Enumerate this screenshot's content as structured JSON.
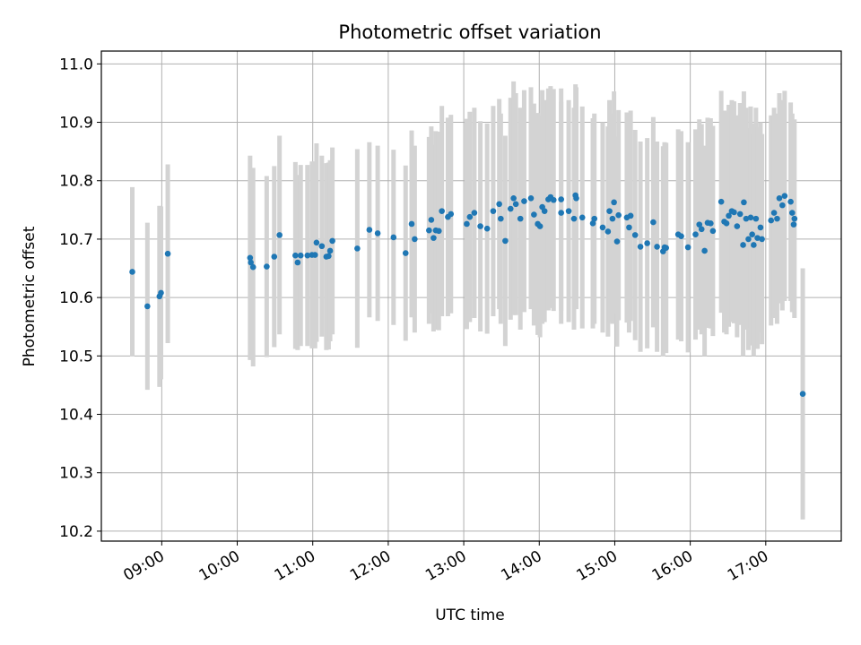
{
  "chart_data": {
    "type": "scatter",
    "title": "Photometric offset variation",
    "xlabel": "UTC time",
    "ylabel": "Photometric offset",
    "x_unit": "hours UTC",
    "xlim": [
      8.2,
      18.0
    ],
    "ylim": [
      10.183,
      11.022
    ],
    "x_ticks": [
      9,
      10,
      11,
      12,
      13,
      14,
      15,
      16,
      17
    ],
    "x_tick_labels": [
      "09:00",
      "10:00",
      "11:00",
      "12:00",
      "13:00",
      "14:00",
      "15:00",
      "16:00",
      "17:00"
    ],
    "y_ticks": [
      10.2,
      10.3,
      10.4,
      10.5,
      10.6,
      10.7,
      10.8,
      10.9,
      11.0
    ],
    "y_tick_labels": [
      "10.2",
      "10.3",
      "10.4",
      "10.5",
      "10.6",
      "10.7",
      "10.8",
      "10.9",
      "11.0"
    ],
    "grid": true,
    "colors": {
      "marker": "#1f77b4",
      "errorbar": "#d3d3d3",
      "grid": "#b0b0b0"
    },
    "points": [
      [
        8.61,
        10.644,
        0.145
      ],
      [
        8.81,
        10.585,
        0.143
      ],
      [
        8.97,
        10.602,
        0.155
      ],
      [
        8.99,
        10.608,
        0.148
      ],
      [
        9.08,
        10.675,
        0.153
      ],
      [
        10.17,
        10.668,
        0.175
      ],
      [
        10.18,
        10.66,
        0.155
      ],
      [
        10.21,
        10.652,
        0.17
      ],
      [
        10.39,
        10.653,
        0.155
      ],
      [
        10.49,
        10.67,
        0.155
      ],
      [
        10.56,
        10.707,
        0.17
      ],
      [
        10.77,
        10.672,
        0.16
      ],
      [
        10.8,
        10.66,
        0.15
      ],
      [
        10.84,
        10.672,
        0.155
      ],
      [
        10.93,
        10.672,
        0.155
      ],
      [
        10.99,
        10.673,
        0.16
      ],
      [
        11.03,
        10.673,
        0.16
      ],
      [
        11.05,
        10.694,
        0.17
      ],
      [
        11.12,
        10.688,
        0.155
      ],
      [
        11.18,
        10.67,
        0.16
      ],
      [
        11.21,
        10.671,
        0.16
      ],
      [
        11.23,
        10.68,
        0.155
      ],
      [
        11.26,
        10.697,
        0.16
      ],
      [
        11.59,
        10.684,
        0.17
      ],
      [
        11.75,
        10.716,
        0.15
      ],
      [
        11.86,
        10.71,
        0.15
      ],
      [
        12.07,
        10.703,
        0.15
      ],
      [
        12.23,
        10.676,
        0.15
      ],
      [
        12.31,
        10.726,
        0.16
      ],
      [
        12.35,
        10.7,
        0.16
      ],
      [
        12.54,
        10.715,
        0.16
      ],
      [
        12.57,
        10.733,
        0.16
      ],
      [
        12.6,
        10.702,
        0.16
      ],
      [
        12.63,
        10.715,
        0.17
      ],
      [
        12.67,
        10.714,
        0.17
      ],
      [
        12.71,
        10.748,
        0.18
      ],
      [
        12.79,
        10.738,
        0.17
      ],
      [
        12.83,
        10.743,
        0.17
      ],
      [
        13.04,
        10.726,
        0.18
      ],
      [
        13.08,
        10.738,
        0.18
      ],
      [
        13.14,
        10.745,
        0.18
      ],
      [
        13.22,
        10.722,
        0.18
      ],
      [
        13.31,
        10.718,
        0.18
      ],
      [
        13.39,
        10.748,
        0.18
      ],
      [
        13.47,
        10.76,
        0.18
      ],
      [
        13.49,
        10.735,
        0.18
      ],
      [
        13.55,
        10.697,
        0.18
      ],
      [
        13.62,
        10.752,
        0.19
      ],
      [
        13.66,
        10.77,
        0.2
      ],
      [
        13.69,
        10.76,
        0.19
      ],
      [
        13.75,
        10.735,
        0.19
      ],
      [
        13.8,
        10.765,
        0.19
      ],
      [
        13.89,
        10.77,
        0.19
      ],
      [
        13.93,
        10.742,
        0.19
      ],
      [
        13.98,
        10.726,
        0.19
      ],
      [
        14.01,
        10.722,
        0.19
      ],
      [
        14.04,
        10.755,
        0.2
      ],
      [
        14.07,
        10.748,
        0.19
      ],
      [
        14.12,
        10.768,
        0.19
      ],
      [
        14.15,
        10.772,
        0.19
      ],
      [
        14.19,
        10.767,
        0.19
      ],
      [
        14.29,
        10.745,
        0.19
      ],
      [
        14.29,
        10.768,
        0.19
      ],
      [
        14.39,
        10.748,
        0.19
      ],
      [
        14.46,
        10.735,
        0.19
      ],
      [
        14.48,
        10.775,
        0.19
      ],
      [
        14.49,
        10.77,
        0.19
      ],
      [
        14.57,
        10.737,
        0.19
      ],
      [
        14.71,
        10.727,
        0.18
      ],
      [
        14.73,
        10.735,
        0.18
      ],
      [
        14.84,
        10.72,
        0.18
      ],
      [
        14.91,
        10.713,
        0.18
      ],
      [
        14.93,
        10.748,
        0.19
      ],
      [
        14.97,
        10.735,
        0.18
      ],
      [
        14.99,
        10.763,
        0.19
      ],
      [
        15.03,
        10.696,
        0.18
      ],
      [
        15.05,
        10.741,
        0.18
      ],
      [
        15.16,
        10.737,
        0.18
      ],
      [
        15.19,
        10.72,
        0.18
      ],
      [
        15.21,
        10.74,
        0.18
      ],
      [
        15.27,
        10.707,
        0.18
      ],
      [
        15.34,
        10.687,
        0.18
      ],
      [
        15.43,
        10.693,
        0.18
      ],
      [
        15.51,
        10.729,
        0.18
      ],
      [
        15.56,
        10.687,
        0.18
      ],
      [
        15.64,
        10.679,
        0.18
      ],
      [
        15.66,
        10.686,
        0.18
      ],
      [
        15.68,
        10.685,
        0.18
      ],
      [
        15.84,
        10.708,
        0.18
      ],
      [
        15.88,
        10.705,
        0.18
      ],
      [
        15.97,
        10.686,
        0.18
      ],
      [
        16.07,
        10.708,
        0.18
      ],
      [
        16.12,
        10.725,
        0.18
      ],
      [
        16.15,
        10.717,
        0.18
      ],
      [
        16.19,
        10.68,
        0.18
      ],
      [
        16.23,
        10.728,
        0.18
      ],
      [
        16.27,
        10.727,
        0.18
      ],
      [
        16.3,
        10.714,
        0.18
      ],
      [
        16.41,
        10.764,
        0.19
      ],
      [
        16.45,
        10.73,
        0.19
      ],
      [
        16.48,
        10.727,
        0.19
      ],
      [
        16.51,
        10.74,
        0.19
      ],
      [
        16.55,
        10.748,
        0.19
      ],
      [
        16.58,
        10.746,
        0.19
      ],
      [
        16.62,
        10.722,
        0.19
      ],
      [
        16.66,
        10.743,
        0.19
      ],
      [
        16.7,
        10.69,
        0.19
      ],
      [
        16.71,
        10.763,
        0.19
      ],
      [
        16.74,
        10.735,
        0.19
      ],
      [
        16.77,
        10.7,
        0.19
      ],
      [
        16.8,
        10.737,
        0.19
      ],
      [
        16.82,
        10.708,
        0.19
      ],
      [
        16.84,
        10.69,
        0.19
      ],
      [
        16.87,
        10.735,
        0.19
      ],
      [
        16.89,
        10.702,
        0.19
      ],
      [
        16.93,
        10.72,
        0.18
      ],
      [
        16.95,
        10.7,
        0.18
      ],
      [
        17.07,
        10.732,
        0.18
      ],
      [
        17.11,
        10.745,
        0.18
      ],
      [
        17.15,
        10.735,
        0.18
      ],
      [
        17.18,
        10.77,
        0.18
      ],
      [
        17.22,
        10.758,
        0.18
      ],
      [
        17.25,
        10.774,
        0.18
      ],
      [
        17.33,
        10.764,
        0.17
      ],
      [
        17.35,
        10.745,
        0.17
      ],
      [
        17.38,
        10.735,
        0.17
      ],
      [
        17.37,
        10.725,
        0.15
      ],
      [
        17.49,
        10.435,
        0.215
      ]
    ]
  }
}
